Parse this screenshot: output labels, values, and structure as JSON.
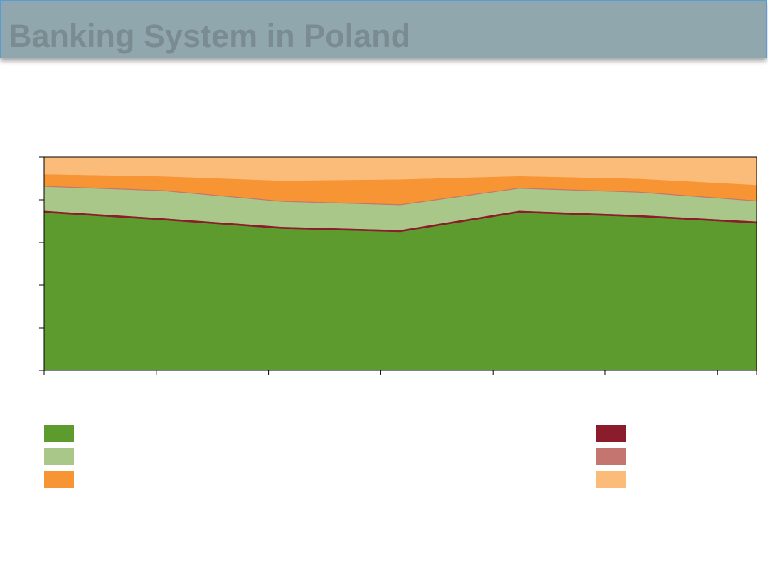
{
  "slide": {
    "title": "Banking System in Poland",
    "title_bar_color": "#90a8ad"
  },
  "chart_data": {
    "type": "area",
    "stacked": true,
    "percent_stacked": true,
    "x": [
      0,
      1,
      2,
      3,
      4,
      5,
      6
    ],
    "ylim": [
      0,
      100
    ],
    "yticks": [
      0,
      20,
      40,
      60,
      80,
      100
    ],
    "grid": false,
    "legend_position": "bottom",
    "series": [
      {
        "color": "#5d9b2f",
        "values": [
          74,
          70.5,
          66.5,
          65,
          74,
          72,
          69
        ]
      },
      {
        "color": "#8b1c2c",
        "values": [
          0.9,
          0.9,
          0.9,
          0.9,
          0.9,
          0.9,
          0.9
        ]
      },
      {
        "color": "#a9c788",
        "values": [
          11.3,
          12.8,
          11.8,
          11.7,
          10.4,
          10.6,
          9.5
        ]
      },
      {
        "color": "#c4756f",
        "values": [
          0.4,
          0.4,
          0.4,
          0.4,
          0.4,
          0.4,
          0.4
        ]
      },
      {
        "color": "#f79433",
        "values": [
          5.4,
          6.4,
          9.4,
          11.6,
          5.4,
          6.0,
          7.2
        ]
      },
      {
        "color": "#fabc78",
        "values": [
          8.0,
          9.0,
          11.0,
          10.4,
          8.9,
          10.1,
          13.0
        ]
      }
    ]
  }
}
